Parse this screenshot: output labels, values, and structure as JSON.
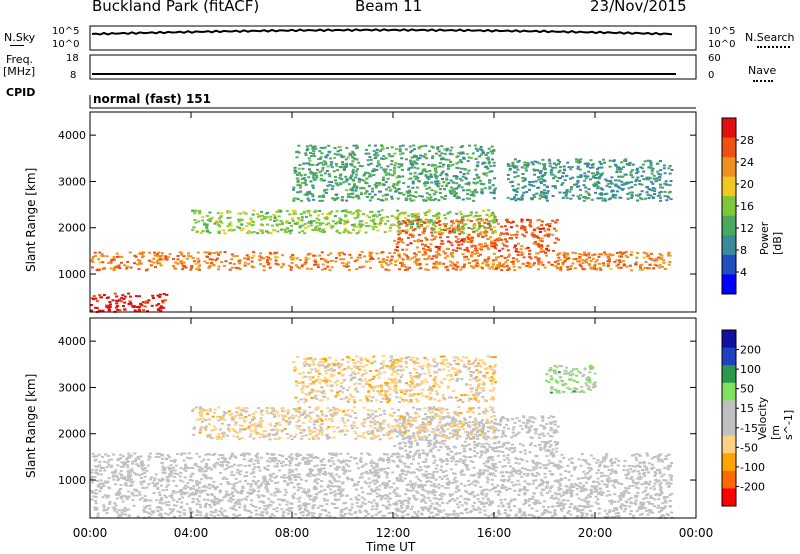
{
  "header": {
    "station": "Buckland Park (fitACF)",
    "beam": "Beam 11",
    "date": "23/Nov/2015"
  },
  "left_labels": {
    "nsky": "N.Sky",
    "freq": "Freq.",
    "freq_unit": "[MHz]",
    "cpid": "CPID",
    "nsky_ticks": [
      "10^5",
      "10^0"
    ],
    "freq_ticks": [
      "18",
      "8"
    ]
  },
  "right_labels": {
    "nsearch": "N.Search",
    "nave": "Nave",
    "nsearch_ticks": [
      "10^5",
      "10^0"
    ],
    "nave_ticks": [
      "60",
      "0"
    ]
  },
  "cpid_text": "normal (fast) 151",
  "time_axis": {
    "title": "Time UT",
    "ticks": [
      "00:00",
      "04:00",
      "08:00",
      "12:00",
      "16:00",
      "20:00",
      "00:00"
    ]
  },
  "colors": {
    "power_scale": [
      "#0000ff",
      "#2050c0",
      "#3a8a9a",
      "#4aa860",
      "#7cc83a",
      "#f0c820",
      "#f09020",
      "#f05010",
      "#e01010"
    ],
    "velocity_scale": [
      "#ff0000",
      "#ff6a00",
      "#ffa500",
      "#ffd080",
      "#c0c0c0",
      "#c0c0c0",
      "#80e060",
      "#2a9a4a",
      "#2040c0",
      "#1010a0"
    ]
  },
  "chart_data": [
    {
      "type": "heatmap",
      "title": "",
      "xlabel": "Time UT",
      "ylabel": "Slant Range [km]",
      "xlim": [
        "00:00",
        "00:00"
      ],
      "ylim": [
        180,
        4500
      ],
      "yticks": [
        "1000",
        "2000",
        "3000",
        "4000"
      ],
      "colorbar": {
        "label": "Power [dB]",
        "ticks": [
          "28",
          "24",
          "20",
          "16",
          "12",
          "8",
          "4"
        ],
        "range": [
          0,
          32
        ]
      },
      "bands": [
        {
          "t_start": 0.0,
          "t_end": 3.0,
          "r_low": 200,
          "r_high": 600,
          "value": 30
        },
        {
          "t_start": 0.0,
          "t_end": 23.0,
          "r_low": 1100,
          "r_high": 1500,
          "value": 24
        },
        {
          "t_start": 12.0,
          "t_end": 18.5,
          "r_low": 1500,
          "r_high": 2200,
          "value": 26
        },
        {
          "t_start": 4.0,
          "t_end": 16.0,
          "r_low": 1900,
          "r_high": 2400,
          "value": 16
        },
        {
          "t_start": 8.0,
          "t_end": 16.0,
          "r_low": 2600,
          "r_high": 3800,
          "value": 12
        },
        {
          "t_start": 16.5,
          "t_end": 23.0,
          "r_low": 2600,
          "r_high": 3500,
          "value": 10
        }
      ]
    },
    {
      "type": "heatmap",
      "title": "",
      "xlabel": "Time UT",
      "ylabel": "Slant Range [km]",
      "xlim": [
        "00:00",
        "00:00"
      ],
      "ylim": [
        180,
        4500
      ],
      "yticks": [
        "1000",
        "2000",
        "3000",
        "4000"
      ],
      "colorbar": {
        "label": "Velocity [m s^-1]",
        "ticks": [
          "200",
          "100",
          "50",
          "15",
          "-15",
          "-50",
          "-100",
          "-200"
        ],
        "range": [
          -250,
          250
        ]
      },
      "bands": [
        {
          "t_start": 0.0,
          "t_end": 23.0,
          "r_low": 200,
          "r_high": 1600,
          "value": 0
        },
        {
          "t_start": 12.0,
          "t_end": 18.5,
          "r_low": 1600,
          "r_high": 2400,
          "value": 0
        },
        {
          "t_start": 4.0,
          "t_end": 16.0,
          "r_low": 1900,
          "r_high": 2600,
          "value": -60
        },
        {
          "t_start": 8.0,
          "t_end": 16.0,
          "r_low": 2700,
          "r_high": 3700,
          "value": -70
        },
        {
          "t_start": 18.0,
          "t_end": 20.0,
          "r_low": 2900,
          "r_high": 3500,
          "value": 60
        }
      ]
    }
  ]
}
